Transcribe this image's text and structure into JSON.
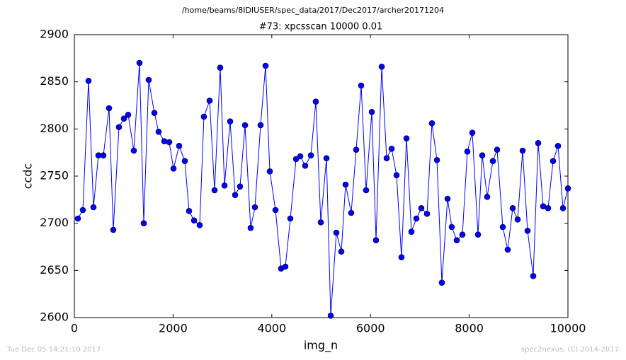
{
  "chart_data": {
    "type": "line",
    "suptitle": "/home/beams/8IDIUSER/spec_data/2017/Dec2017/archer20171204",
    "title": "#73: xpcsscan 10000 0.01",
    "x_label": "img_n",
    "y_label": "ccdc",
    "footer_left": "Tue Dec 05 14:21:10 2017",
    "footer_right": "spec2nexus, (C) 2014-2017",
    "x": [
      72,
      172,
      287,
      387,
      488,
      588,
      703,
      789,
      904,
      1004,
      1090,
      1205,
      1320,
      1406,
      1506,
      1621,
      1707,
      1822,
      1922,
      2009,
      2123,
      2238,
      2324,
      2425,
      2539,
      2625,
      2740,
      2841,
      2955,
      3042,
      3156,
      3257,
      3357,
      3458,
      3572,
      3659,
      3773,
      3874,
      3960,
      4075,
      4189,
      4275,
      4376,
      4491,
      4577,
      4677,
      4792,
      4892,
      4993,
      5108,
      5194,
      5308,
      5409,
      5495,
      5609,
      5710,
      5811,
      5911,
      6026,
      6112,
      6227,
      6327,
      6428,
      6528,
      6628,
      6729,
      6829,
      6930,
      7030,
      7145,
      7245,
      7346,
      7446,
      7561,
      7647,
      7747,
      7862,
      7962,
      8063,
      8178,
      8264,
      8364,
      8479,
      8565,
      8680,
      8780,
      8881,
      8981,
      9082,
      9182,
      9297,
      9397,
      9498,
      9598,
      9699,
      9799,
      9900,
      10000
    ],
    "series": [
      {
        "name": "ccdc",
        "color": "#0000ff",
        "values": [
          2705,
          2714,
          2851,
          2717,
          2772,
          2772,
          2822,
          2693,
          2802,
          2811,
          2815,
          2777,
          2870,
          2700,
          2852,
          2817,
          2797,
          2787,
          2786,
          2758,
          2782,
          2766,
          2713,
          2703,
          2698,
          2813,
          2830,
          2735,
          2865,
          2740,
          2808,
          2730,
          2739,
          2804,
          2695,
          2717,
          2804,
          2867,
          2755,
          2714,
          2652,
          2654,
          2705,
          2768,
          2771,
          2761,
          2772,
          2829,
          2701,
          2769,
          2602,
          2690,
          2670,
          2741,
          2711,
          2778,
          2846,
          2735,
          2818,
          2682,
          2866,
          2769,
          2779,
          2751,
          2664,
          2790,
          2691,
          2705,
          2716,
          2710,
          2806,
          2767,
          2637,
          2726,
          2696,
          2682,
          2688,
          2776,
          2796,
          2688,
          2772,
          2728,
          2766,
          2778,
          2696,
          2672,
          2716,
          2704,
          2777,
          2692,
          2644,
          2785,
          2718,
          2716,
          2766,
          2782,
          2716,
          2737
        ]
      }
    ],
    "xlim": [
      0,
      10000
    ],
    "xticks": [
      0,
      2000,
      4000,
      6000,
      8000,
      10000
    ],
    "ylim": [
      2600,
      2900
    ],
    "yticks": [
      2600,
      2650,
      2700,
      2750,
      2800,
      2850,
      2900
    ]
  }
}
